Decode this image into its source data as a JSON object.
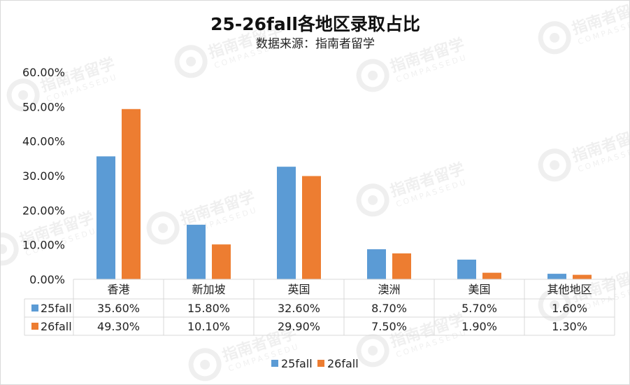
{
  "colors": {
    "series1": "#5B9BD5",
    "series2": "#ED7D31",
    "grid": "#d9d9d9",
    "watermark": "#000000"
  },
  "watermark": {
    "text": "指南者留学",
    "sub": "COMPASSEDU",
    "icon": "compass-logo-icon"
  },
  "chart_data": {
    "type": "bar",
    "title": "25-26fall各地区录取占比",
    "subtitle": "数据来源：指南者留学",
    "categories": [
      "香港",
      "新加坡",
      "英国",
      "澳洲",
      "美国",
      "其他地区"
    ],
    "series": [
      {
        "name": "25fall",
        "values": [
          35.6,
          15.8,
          32.6,
          8.7,
          5.7,
          1.6
        ],
        "labels": [
          "35.60%",
          "15.80%",
          "32.60%",
          "8.70%",
          "5.70%",
          "1.60%"
        ]
      },
      {
        "name": "26fall",
        "values": [
          49.3,
          10.1,
          29.9,
          7.5,
          1.9,
          1.3
        ],
        "labels": [
          "49.30%",
          "10.10%",
          "29.90%",
          "7.50%",
          "1.90%",
          "1.30%"
        ]
      }
    ],
    "yticks": [
      "0.00%",
      "10.00%",
      "20.00%",
      "30.00%",
      "40.00%",
      "50.00%",
      "60.00%"
    ],
    "ylim": [
      0,
      60
    ],
    "grid": false,
    "legend": "bottom",
    "data_table": true
  }
}
